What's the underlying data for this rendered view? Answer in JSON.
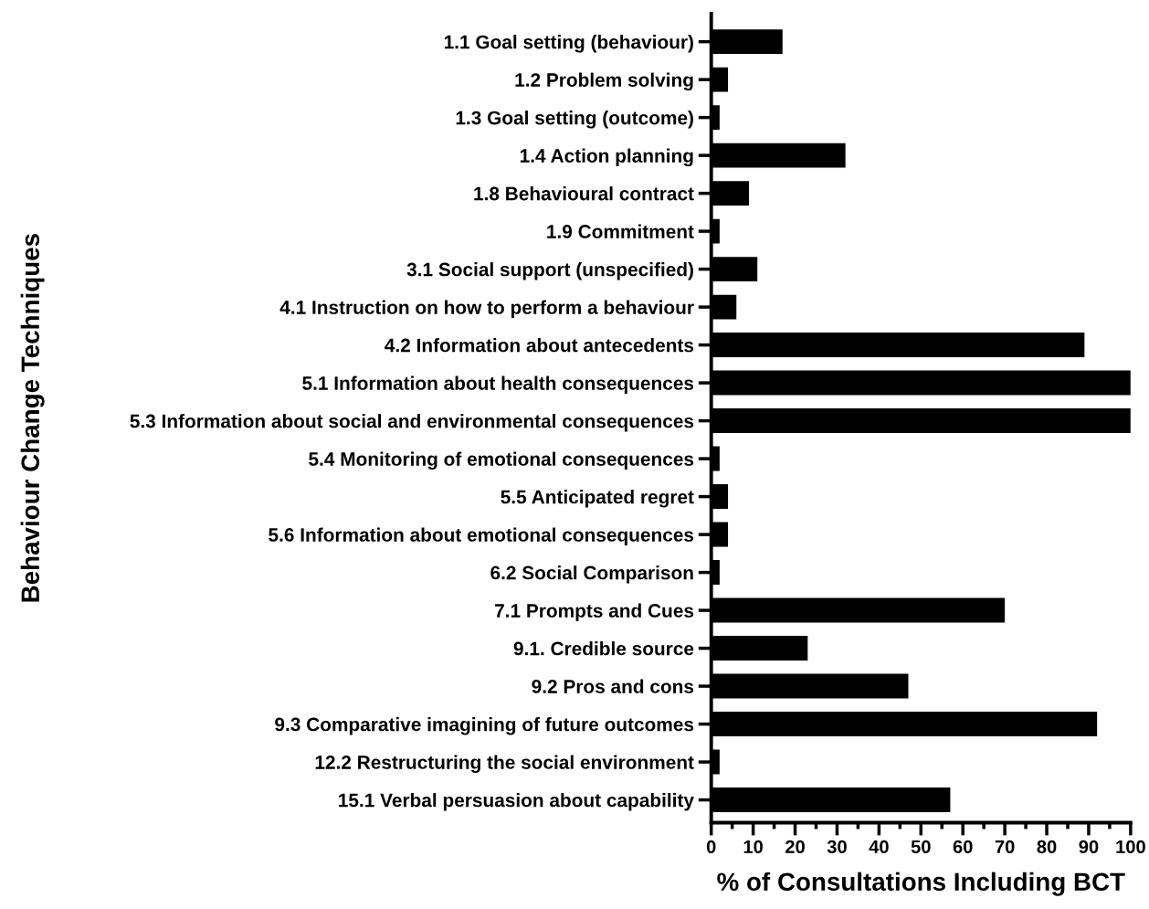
{
  "chart_data": {
    "type": "bar",
    "orientation": "horizontal",
    "xlabel": "% of Consultations Including BCT",
    "ylabel": "Behaviour Change Techniques",
    "categories": [
      "1.1 Goal setting (behaviour)",
      "1.2 Problem solving",
      "1.3 Goal setting (outcome)",
      "1.4 Action planning",
      "1.8 Behavioural contract",
      "1.9 Commitment",
      "3.1 Social support (unspecified)",
      "4.1 Instruction on how to perform a behaviour",
      "4.2 Information about antecedents",
      "5.1 Information about health consequences",
      "5.3 Information about social and environmental consequences",
      "5.4 Monitoring of emotional consequences",
      "5.5 Anticipated regret",
      "5.6 Information about emotional consequences",
      "6.2 Social Comparison",
      "7.1 Prompts and Cues",
      "9.1. Credible source",
      "9.2 Pros and cons",
      "9.3 Comparative imagining of future outcomes",
      "12.2 Restructuring the social environment",
      "15.1 Verbal persuasion about capability"
    ],
    "values": [
      17,
      4,
      2,
      32,
      9,
      2,
      11,
      6,
      89,
      100,
      100,
      2,
      4,
      4,
      2,
      70,
      23,
      47,
      92,
      2,
      57
    ],
    "color": "#000000",
    "xlim": [
      0,
      100
    ],
    "xticks": [
      0,
      10,
      20,
      30,
      40,
      50,
      60,
      70,
      80,
      90,
      100
    ],
    "grid": false,
    "legend": false
  }
}
